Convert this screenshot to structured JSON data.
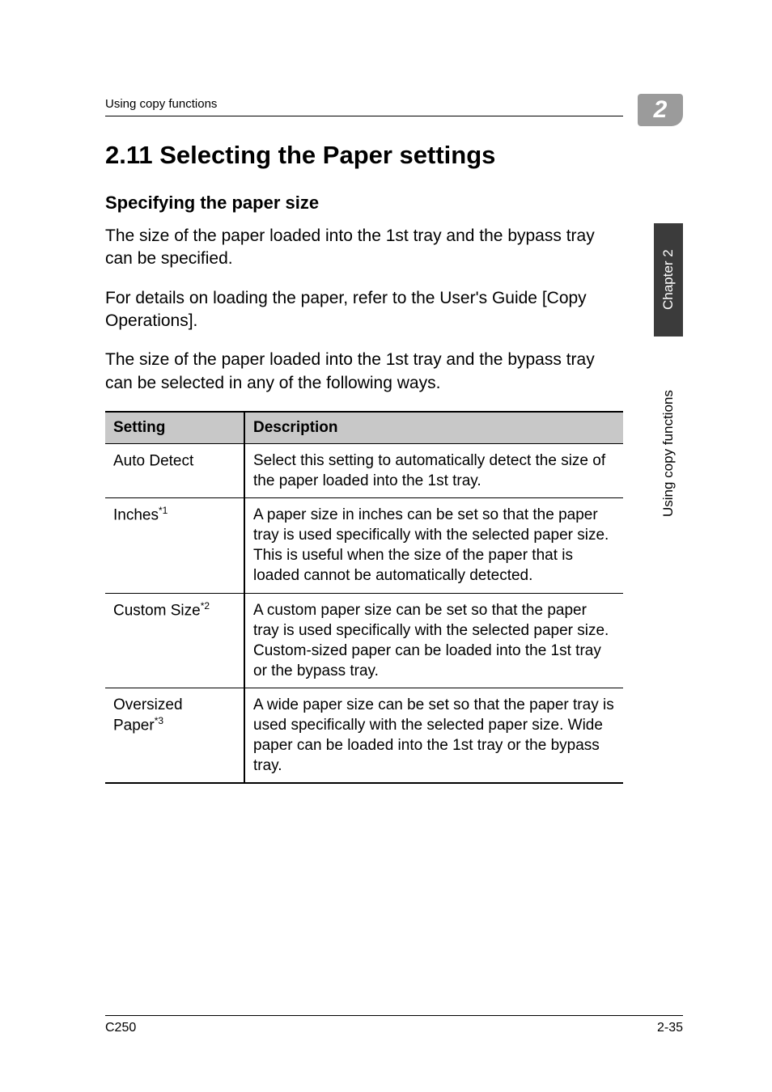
{
  "header": {
    "running_head": "Using copy functions",
    "corner_number": "2"
  },
  "side_tabs": {
    "dark": "Chapter 2",
    "light": "Using copy functions"
  },
  "section": {
    "title": "2.11  Selecting the Paper settings",
    "subheading": "Specifying the paper size",
    "paragraphs": [
      "The size of the paper loaded into the 1st tray and the bypass tray can be specified.",
      "For details on loading the paper, refer to the User's Guide [Copy Operations].",
      "The size of the paper loaded into the 1st tray and the bypass tray can be selected in any of the following ways."
    ]
  },
  "table": {
    "columns": [
      "Setting",
      "Description"
    ],
    "rows": [
      {
        "setting": "Auto Detect",
        "sup": "",
        "desc": "Select this setting to automatically detect the size of the paper loaded into the 1st tray."
      },
      {
        "setting": "Inches",
        "sup": "*1",
        "desc": "A paper size in inches can be set so that the paper tray is used specifically with the selected paper size.\nThis is useful when the size of the paper that is loaded cannot be automatically detected."
      },
      {
        "setting": "Custom Size",
        "sup": "*2",
        "desc": "A custom paper size can be set so that the paper tray is used specifically with the selected paper size.\nCustom-sized paper can be loaded into the 1st tray or the bypass tray."
      },
      {
        "setting": "Oversized Paper",
        "sup": "*3",
        "desc": "A wide paper size can be set so that the paper tray is used specifically with the selected paper size.\nWide paper can be loaded into the 1st tray or the bypass tray."
      }
    ]
  },
  "footer": {
    "left": "C250",
    "right": "2-35"
  },
  "style": {
    "page_bg": "#ffffff",
    "text_color": "#000000",
    "tab_gray": "#9b9b9b",
    "tab_dark": "#3b3b3b",
    "table_header_bg": "#c8c8c8",
    "body_font_size_pt": 16,
    "title_font_size_pt": 23,
    "sub_font_size_pt": 17,
    "table_font_size_pt": 14
  }
}
